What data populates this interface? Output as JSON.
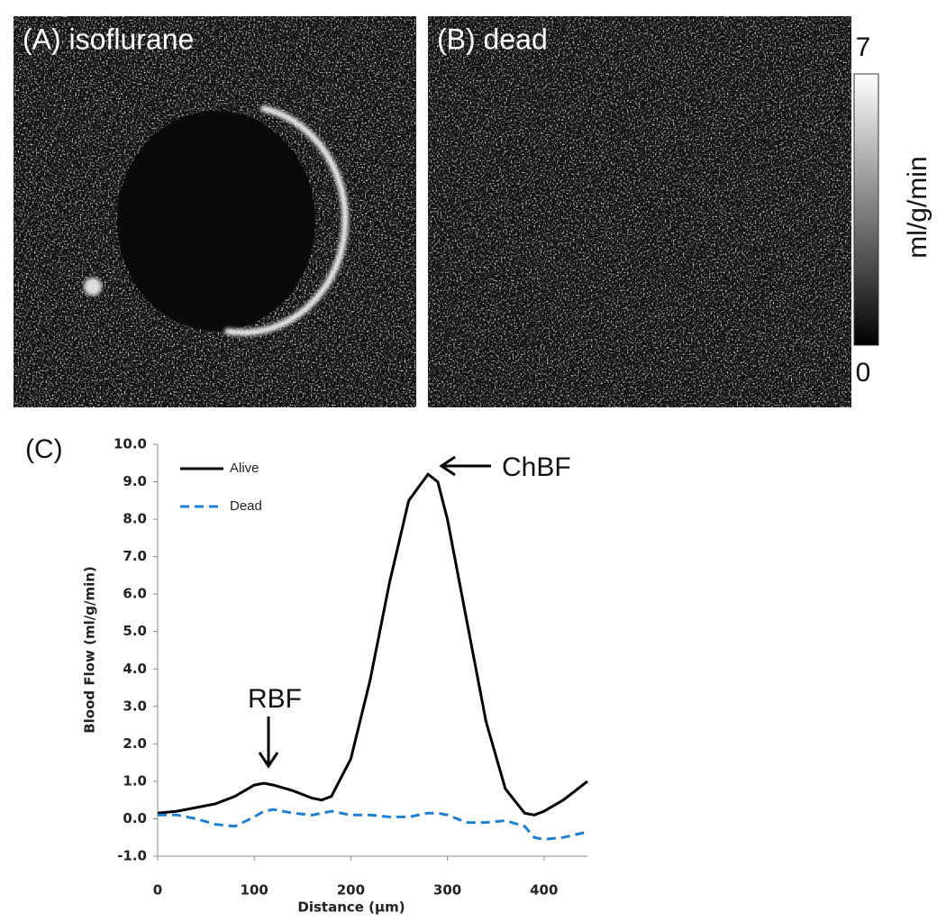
{
  "images": {
    "panel_a": "(A) isoflurane",
    "panel_b": "(B) dead",
    "colorbar": {
      "label": "ml/g/min",
      "lim": [
        0,
        7
      ],
      "ticks": [
        0,
        7
      ]
    }
  },
  "chart_data": {
    "type": "line",
    "panel_label": "(C)",
    "y_label": "Blood Flow (ml/g/min)",
    "x_label": "Distance (µm)",
    "x": [
      0,
      20,
      40,
      60,
      80,
      100,
      110,
      120,
      140,
      160,
      170,
      180,
      200,
      220,
      240,
      260,
      280,
      290,
      300,
      320,
      340,
      360,
      380,
      390,
      400,
      420,
      445
    ],
    "series": [
      {
        "name": "Alive",
        "color": "#000000",
        "dash": false,
        "values": [
          0.15,
          0.2,
          0.3,
          0.4,
          0.6,
          0.9,
          0.95,
          0.9,
          0.75,
          0.55,
          0.5,
          0.6,
          1.6,
          3.7,
          6.3,
          8.5,
          9.2,
          9.0,
          8.0,
          5.3,
          2.6,
          0.8,
          0.15,
          0.1,
          0.2,
          0.5,
          1.0
        ]
      },
      {
        "name": "Dead",
        "color": "#1f7fd0",
        "dash": true,
        "values": [
          0.1,
          0.1,
          0.0,
          -0.15,
          -0.2,
          0.05,
          0.2,
          0.25,
          0.15,
          0.1,
          0.15,
          0.2,
          0.1,
          0.1,
          0.05,
          0.05,
          0.15,
          0.15,
          0.1,
          -0.1,
          -0.1,
          -0.05,
          -0.2,
          -0.5,
          -0.55,
          -0.5,
          -0.35
        ]
      }
    ],
    "xlim": [
      0,
      445
    ],
    "xticks": [
      0,
      100,
      200,
      300,
      400
    ],
    "ylim": [
      -1,
      10
    ],
    "yticks": [
      {
        "value": -1,
        "label": "-1.0"
      },
      {
        "value": 0,
        "label": "0.0"
      },
      {
        "value": 1,
        "label": "1.0"
      },
      {
        "value": 2,
        "label": "2.0"
      },
      {
        "value": 3,
        "label": "3.0"
      },
      {
        "value": 4,
        "label": "4.0"
      },
      {
        "value": 5,
        "label": "5.0"
      },
      {
        "value": 6,
        "label": "6.0"
      },
      {
        "value": 7,
        "label": "7.0"
      },
      {
        "value": 8,
        "label": "8.0"
      },
      {
        "value": 9,
        "label": "9.0"
      },
      {
        "value": 10,
        "label": "10.0"
      }
    ],
    "annotations": [
      "RBF",
      "ChBF"
    ],
    "legend": "upper left"
  }
}
